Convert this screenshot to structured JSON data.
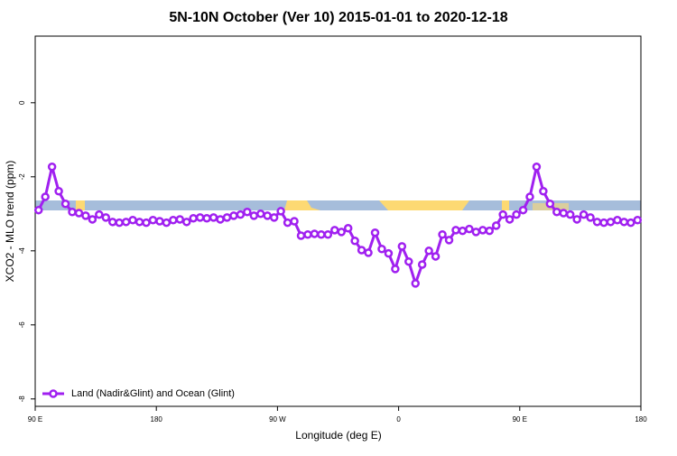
{
  "chart_data": {
    "type": "line",
    "title": "5N-10N October (Ver 10)   2015-01-01 to 2020-12-18",
    "x_label": "Longitude (deg E)",
    "y_label": "XCO2 - MLO trend (ppm)",
    "x": [
      92.5,
      97.5,
      102.5,
      107.5,
      112.5,
      117.5,
      122.5,
      127.5,
      132.5,
      137.5,
      142.5,
      147.5,
      152.5,
      157.5,
      162.5,
      167.5,
      172.5,
      177.5,
      182.5,
      187.5,
      192.5,
      197.5,
      202.5,
      207.5,
      212.5,
      217.5,
      222.5,
      227.5,
      232.5,
      237.5,
      242.5,
      247.5,
      252.5,
      257.5,
      262.5,
      267.5,
      272.5,
      277.5,
      282.5,
      287.5,
      292.5,
      297.5,
      302.5,
      307.5,
      312.5,
      317.5,
      322.5,
      327.5,
      332.5,
      337.5,
      342.5,
      347.5,
      352.5,
      357.5,
      362.5,
      367.5,
      372.5,
      377.5,
      382.5,
      387.5,
      392.5,
      397.5,
      402.5,
      407.5,
      412.5,
      417.5,
      422.5,
      427.5,
      432.5,
      437.5,
      442.5,
      447.5,
      452.5,
      457.5,
      462.5,
      467.5,
      472.5,
      477.5,
      482.5,
      487.5,
      492.5,
      497.5,
      502.5,
      507.5,
      512.5,
      517.5,
      522.5,
      527.5,
      532.5,
      537.5
    ],
    "series": [
      {
        "name": "Land (Nadir&Glint) and Ocean (Glint)",
        "color": "#a020f0",
        "values": [
          -2.9,
          -2.54,
          -1.73,
          -2.39,
          -2.73,
          -2.95,
          -2.98,
          -3.05,
          -3.15,
          -3.02,
          -3.1,
          -3.22,
          -3.24,
          -3.22,
          -3.17,
          -3.22,
          -3.24,
          -3.17,
          -3.2,
          -3.24,
          -3.17,
          -3.15,
          -3.22,
          -3.12,
          -3.1,
          -3.12,
          -3.1,
          -3.15,
          -3.1,
          -3.05,
          -3.02,
          -2.95,
          -3.05,
          -3.0,
          -3.05,
          -3.1,
          -2.93,
          -3.24,
          -3.2,
          -3.59,
          -3.56,
          -3.54,
          -3.56,
          -3.56,
          -3.44,
          -3.49,
          -3.39,
          -3.73,
          -3.98,
          -4.05,
          -3.51,
          -3.95,
          -4.07,
          -4.49,
          -3.88,
          -4.29,
          -4.88,
          -4.37,
          -4.0,
          -4.15,
          -3.56,
          -3.71,
          -3.44,
          -3.46,
          -3.41,
          -3.49,
          -3.44,
          -3.46,
          -3.32,
          -3.02,
          -3.15,
          -3.02,
          -2.9,
          -2.54,
          -1.73,
          -2.39,
          -2.73,
          -2.95,
          -2.98,
          -3.02,
          -3.15,
          -3.02,
          -3.1,
          -3.22,
          -3.24,
          -3.22,
          -3.17,
          -3.22,
          -3.24,
          -3.17
        ]
      }
    ],
    "xlim": [
      90,
      540
    ],
    "xticks": [
      {
        "value": 90,
        "label": "90 E"
      },
      180,
      {
        "value": 270,
        "label": "90 W"
      },
      {
        "value": 360,
        "label": "0"
      },
      {
        "value": 450,
        "label": "90 E"
      },
      {
        "value": 540,
        "label": "180"
      }
    ],
    "ylim": [
      -8.2,
      1.8
    ],
    "yticks": [
      -8,
      -6,
      -4,
      -2,
      0
    ],
    "legend": "bottom-left"
  }
}
